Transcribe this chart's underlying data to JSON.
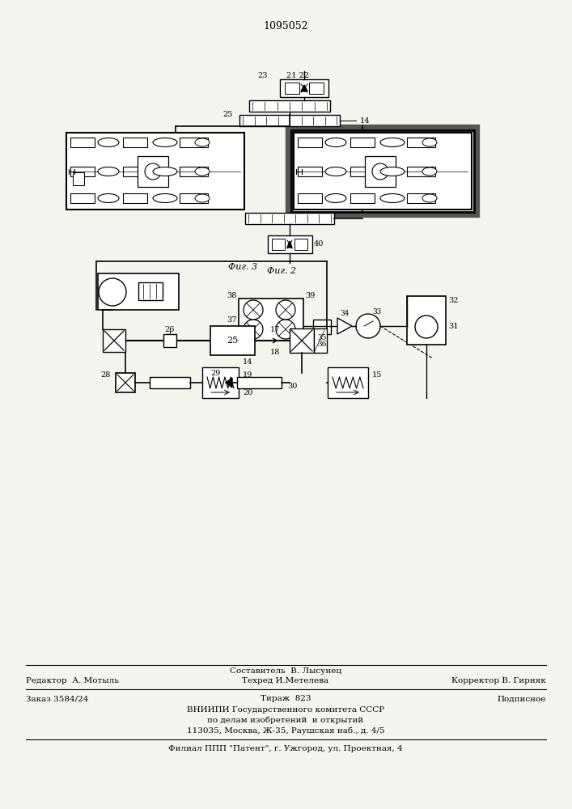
{
  "title_number": "1095052",
  "fig2_label": "Фиг. 2",
  "fig3_label": "Фиг. 3",
  "background_color": "#f5f5f0",
  "line_color": "#1a1a1a",
  "footer": {
    "line1_center": "Составитель  В. Лысунец",
    "line2_left": "Редактор  А. Мотыль",
    "line2_center": "Техред И.Метелева",
    "line2_right": "Корректор В. Гирняк",
    "line3_left": "Заказ 3584/24",
    "line3_center": "Тираж  823",
    "line3_right": "Подписное",
    "line4": "ВНИИПИ Государственного комитета СССР",
    "line5": "по делам изобретений  и открытий",
    "line6": "113035, Москва, Ж-35, Раушская наб., д. 4/5",
    "line7": "Филиал ППП \"Патент\", г. Ужгород, ул. Проектная, 4"
  }
}
